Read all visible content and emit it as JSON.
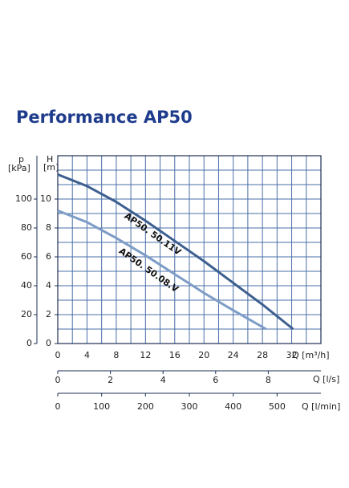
{
  "chart_data": {
    "type": "line",
    "title": "Performance AP50",
    "y_label": "H",
    "y_unit": "[m]",
    "y2_label": "p",
    "y2_unit": "[kPa]",
    "x_label": "Q [m³/h]",
    "x2_label": "Q [l/s]",
    "x3_label": "Q [l/min]",
    "xlim": [
      0,
      36
    ],
    "xticks": [
      0,
      4,
      8,
      12,
      16,
      20,
      24,
      28,
      32
    ],
    "xgrid": [
      0,
      2,
      4,
      6,
      8,
      10,
      12,
      14,
      16,
      18,
      20,
      22,
      24,
      26,
      28,
      30,
      32,
      34,
      36
    ],
    "ylim": [
      0,
      13
    ],
    "yticks": [
      0,
      2,
      4,
      6,
      8,
      10
    ],
    "ygrid": [
      0,
      1,
      2,
      3,
      4,
      5,
      6,
      7,
      8,
      9,
      10,
      11,
      12,
      13
    ],
    "y2lim": [
      0,
      130
    ],
    "y2ticks": [
      0,
      20,
      40,
      60,
      80,
      100
    ],
    "x2lim": [
      0,
      10
    ],
    "x2ticks": [
      0,
      2,
      4,
      6,
      8
    ],
    "x3lim": [
      0,
      600
    ],
    "x3ticks": [
      0,
      100,
      200,
      300,
      400,
      500
    ],
    "grid_color": "#4a6fa8",
    "series": [
      {
        "name": "AP50. 50.11V",
        "color": "#3d5f8f",
        "x": [
          0,
          4,
          8,
          12,
          16,
          20,
          24,
          28,
          32.2
        ],
        "values": [
          11.7,
          10.9,
          9.8,
          8.5,
          7.1,
          5.7,
          4.2,
          2.7,
          1.0
        ]
      },
      {
        "name": "AP50. 50.08.V",
        "color": "#7d9cc6",
        "x": [
          0,
          4,
          8,
          12,
          16,
          20,
          24,
          28.5
        ],
        "values": [
          9.2,
          8.4,
          7.3,
          6.1,
          4.8,
          3.5,
          2.3,
          1.0
        ]
      }
    ]
  }
}
